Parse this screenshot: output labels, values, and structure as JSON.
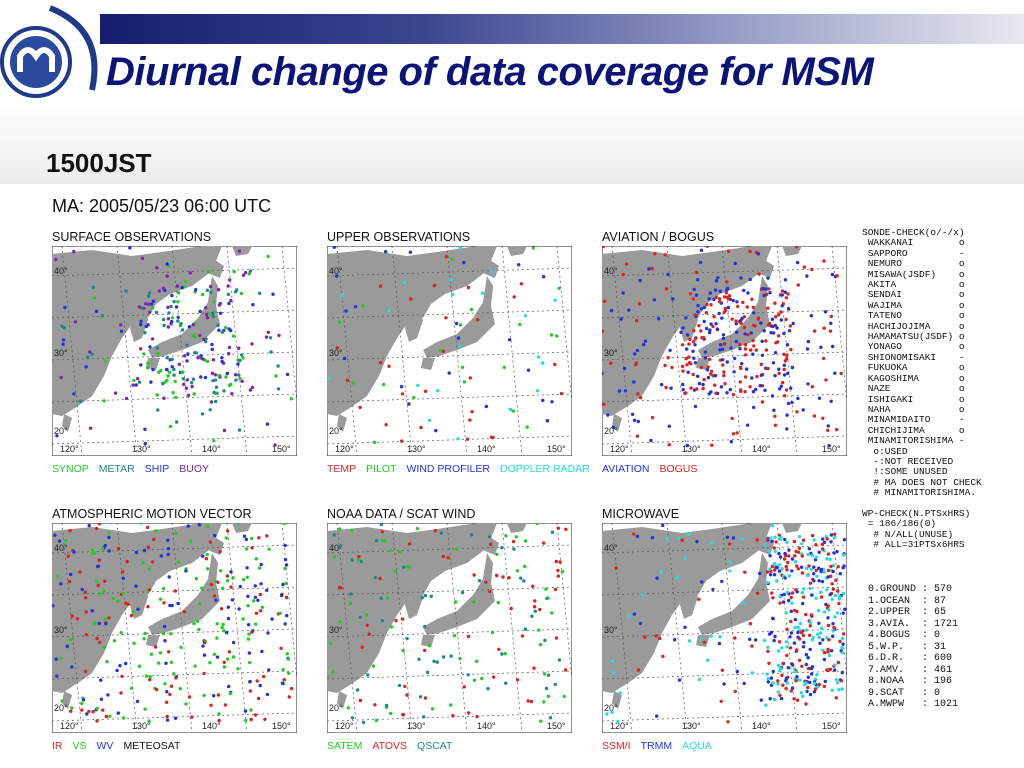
{
  "header": {
    "title": "Diurnal change of data coverage for MSM",
    "subtitle": "1500JST",
    "ma_line": "MA: 2005/05/23 06:00 UTC"
  },
  "panels": [
    {
      "id": "surface",
      "title": "SURFACE OBSERVATIONS",
      "legend": [
        {
          "label": "SYNOP",
          "color": "#22cc22"
        },
        {
          "label": "METAR",
          "color": "#1a8a8a"
        },
        {
          "label": "SHIP",
          "color": "#2233dd"
        },
        {
          "label": "BUOY",
          "color": "#8822aa"
        }
      ]
    },
    {
      "id": "upper",
      "title": "UPPER OBSERVATIONS",
      "legend": [
        {
          "label": "TEMP",
          "color": "#dd2222"
        },
        {
          "label": "PILOT",
          "color": "#22cc22"
        },
        {
          "label": "WIND PROFILER",
          "color": "#2233dd"
        },
        {
          "label": "DOPPLER RADAR",
          "color": "#22dddd"
        }
      ]
    },
    {
      "id": "aviation",
      "title": "AVIATION / BOGUS",
      "legend": [
        {
          "label": "AVIATION",
          "color": "#2233dd"
        },
        {
          "label": "BOGUS",
          "color": "#dd2222"
        }
      ]
    },
    {
      "id": "amv",
      "title": "ATMOSPHERIC MOTION VECTOR",
      "legend": [
        {
          "label": "IR",
          "color": "#dd2222"
        },
        {
          "label": "VS",
          "color": "#22cc22"
        },
        {
          "label": "WV",
          "color": "#2233dd"
        },
        {
          "label": "METEOSAT",
          "color": "#111111"
        }
      ]
    },
    {
      "id": "noaa",
      "title": "NOAA DATA / SCAT WIND",
      "legend": [
        {
          "label": "SATEM",
          "color": "#22cc22"
        },
        {
          "label": "ATOVS",
          "color": "#dd2222"
        },
        {
          "label": "QSCAT",
          "color": "#1a8a8a"
        }
      ]
    },
    {
      "id": "microwave",
      "title": "MICROWAVE",
      "legend": [
        {
          "label": "SSM/I",
          "color": "#dd2222"
        },
        {
          "label": "TRMM",
          "color": "#2233dd"
        },
        {
          "label": "AQUA",
          "color": "#22dddd"
        }
      ]
    }
  ],
  "map_labels": {
    "lat": [
      "40°",
      "30°",
      "20°"
    ],
    "lon": [
      "120°",
      "130°",
      "140°",
      "150°"
    ]
  },
  "sonde_check": "SONDE-CHECK(o/-/x)\n WAKKANAI        o\n SAPPORO         -\n NEMURO          o\n MISAWA(JSDF)    o\n AKITA           o\n SENDAI          o\n WAJIMA          o\n TATENO          o\n HACHIJOJIMA     o\n HAMAMATSU(JSDF) o\n YONAGO          o\n SHIONOMISAKI    -\n FUKUOKA         o\n KAGOSHIMA       o\n NAZE            o\n ISHIGAKI        o\n NAHA            o\n MINAMIDAITO     -\n CHICHIJIMA      o\n MINAMITORISHIMA -\n  o:USED\n  -:NOT RECEIVED\n  !:SOME UNUSED\n  # MA DOES NOT CHECK\n  # MINAMITORISHIMA.\n\nWP-CHECK(N.PTSxHRS)\n = 186/186(0)\n  # N/ALL(UNUSE)\n  # ALL=31PTSx6HRS",
  "stats": "0.GROUND : 570\n1.OCEAN  : 87\n2.UPPER  : 65\n3.AVIA.  : 1721\n4.BOGUS  : 0\n5.W.P.   : 31\n6.D.R.   : 600\n7.AMV.   : 461\n8.NOAA   : 196\n9.SCAT   : 0\nA.MWPW   : 1021"
}
